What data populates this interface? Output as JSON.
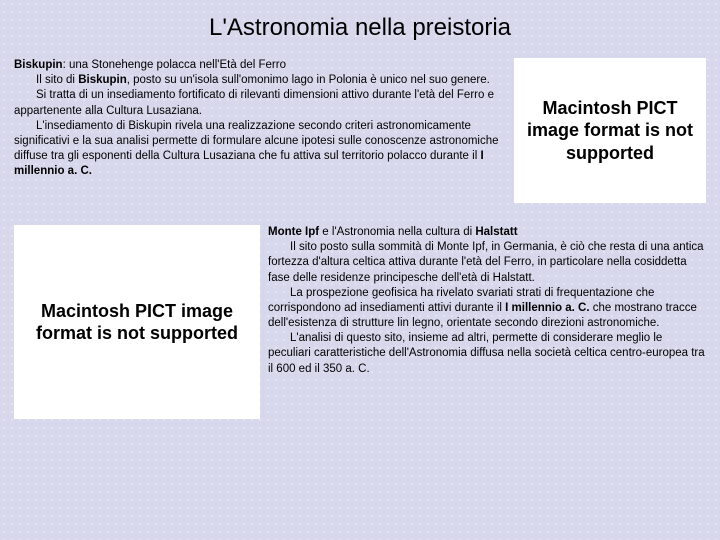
{
  "page": {
    "title": "L'Astronomia nella preistoria",
    "background_color": "#d8d8ec",
    "title_fontsize": 24,
    "body_fontsize": 11.5
  },
  "placeholder": {
    "text": "Macintosh PICT image format is not supported",
    "bg_color": "#ffffff",
    "text_color": "#000000"
  },
  "block1": {
    "lead_bold": "Biskupin",
    "lead_rest": ": una Stonehenge polacca nell'Età del Ferro",
    "p1_a": "Il sito di ",
    "p1_bold": "Biskupin",
    "p1_b": ", posto su un'isola sull'omonimo lago in Polonia è unico nel suo genere.",
    "p2": "Si tratta di un insediamento fortificato di rilevanti dimensioni attivo durante l'età del Ferro e appartenente alla Cultura Lusaziana.",
    "p3_a": "L'insediamento di Biskupin rivela una realizzazione secondo criteri astronomicamente significativi e la sua analisi permette di formulare alcune ipotesi sulle conoscenze astronomiche diffuse tra gli esponenti della Cultura Lusaziana che fu attiva sul territorio polacco durante il ",
    "p3_bold": "I millennio a. C."
  },
  "block2": {
    "lead_a_bold": "Monte Ipf",
    "lead_mid": " e l'Astronomia nella cultura di ",
    "lead_b_bold": "Halstatt",
    "p1": "Il sito posto sulla sommità di Monte Ipf, in Germania, è ciò che resta di una antica fortezza d'altura celtica attiva durante l'età del Ferro, in particolare nella cosiddetta fase delle residenze principesche dell'età di Halstatt.",
    "p2_a": "La prospezione geofisica ha rivelato svariati strati di frequentazione che corrispondono ad insediamenti attivi durante il ",
    "p2_bold": "I millennio a. C.",
    "p2_b": " che mostrano tracce dell'esistenza di strutture lin legno, orientate secondo direzioni astronomiche.",
    "p3": "L'analisi di questo sito, insieme ad altri, permette di considerare meglio le peculiari caratteristiche dell'Astronomia diffusa nella società celtica centro-europea tra il 600 ed il 350 a. C."
  }
}
